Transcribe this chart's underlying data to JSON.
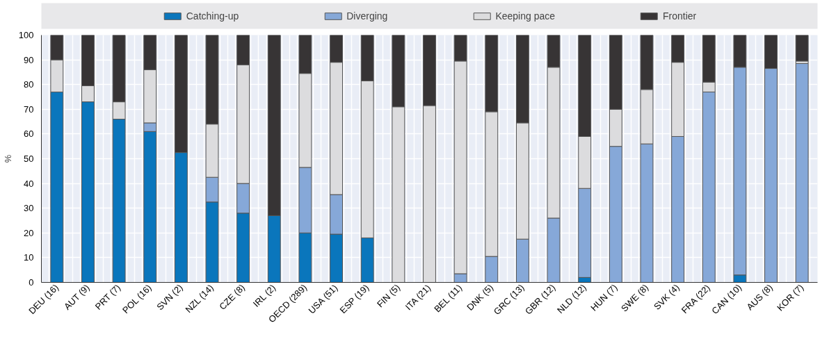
{
  "chart_data": {
    "type": "bar",
    "stacked": true,
    "ylabel": "%",
    "categories": [
      "DEU (16)",
      "AUT (9)",
      "PRT (7)",
      "POL (16)",
      "SVN (2)",
      "NZL (14)",
      "CZE (8)",
      "IRL (2)",
      "OECD (289)",
      "USA (51)",
      "ESP (19)",
      "FIN (5)",
      "ITA (21)",
      "BEL (11)",
      "DNK (5)",
      "GRC (13)",
      "GBR (12)",
      "NLD (12)",
      "HUN (7)",
      "SWE (8)",
      "SVK (4)",
      "FRA (22)",
      "CAN (10)",
      "AUS (8)",
      "KOR (7)"
    ],
    "series": [
      {
        "name": "Catching-up",
        "color": "#0a76bc",
        "colors": [
          "#0a76bc",
          "#0a76bc",
          "#0a76bc",
          "#0a76bc",
          "#0a76bc",
          "#0a76bc",
          "#0a76bc",
          "#0a76bc",
          "#0a76bc",
          "#0a76bc",
          "#0a76bc",
          "#0a76bc",
          "#0a76bc",
          "#0a76bc",
          "#0a76bc",
          "#0a76bc",
          "#0a76bc",
          "#0a76bc",
          "#0a76bc",
          "#0a76bc",
          "#0a76bc",
          "#0a76bc",
          "#0a76bc",
          "#0a76bc",
          "#0a76bc"
        ],
        "values": [
          77,
          73,
          66,
          61,
          52.5,
          32.5,
          28,
          27,
          20,
          19.5,
          18,
          0,
          0,
          0,
          0,
          0,
          0,
          2,
          0,
          0,
          0,
          0,
          3,
          0,
          0
        ]
      },
      {
        "name": "Diverging",
        "color": "#86a8d8",
        "colors": [
          "#86a8d8",
          "#86a8d8",
          "#86a8d8",
          "#86a8d8",
          "#86a8d8",
          "#86a8d8",
          "#86a8d8",
          "#86a8d8",
          "#86a8d8",
          "#86a8d8",
          "#86a8d8",
          "#86a8d8",
          "#86a8d8",
          "#86a8d8",
          "#86a8d8",
          "#86a8d8",
          "#86a8d8",
          "#86a8d8",
          "#86a8d8",
          "#86a8d8",
          "#86a8d8",
          "#86a8d8",
          "#86a8d8",
          "#86a8d8",
          "#86a8d8"
        ],
        "values": [
          0,
          0,
          0,
          3.5,
          0,
          10,
          12,
          0,
          26.5,
          16,
          0,
          0,
          0,
          3.5,
          10.5,
          17.5,
          26,
          36,
          55,
          56,
          59,
          77,
          84,
          86.5,
          88.5
        ]
      },
      {
        "name": "Keeping pace",
        "color": "#dcdcde",
        "colors": [
          "#dcdcde",
          "#dcdcde",
          "#dcdcde",
          "#dcdcde",
          "#dcdcde",
          "#dcdcde",
          "#dcdcde",
          "#dcdcde",
          "#dcdcde",
          "#dcdcde",
          "#dcdcde",
          "#dcdcde",
          "#dcdcde",
          "#dcdcde",
          "#dcdcde",
          "#dcdcde",
          "#dcdcde",
          "#dcdcde",
          "#dcdcde",
          "#dcdcde",
          "#dcdcde",
          "#dcdcde",
          "#dcdcde",
          "#dcdcde",
          "#dcdcde"
        ],
        "values": [
          13,
          6.5,
          7,
          21.5,
          0,
          21.5,
          48,
          0,
          38,
          53.5,
          63.5,
          71,
          71.5,
          86,
          58.5,
          47,
          61,
          21,
          15,
          22,
          30,
          4,
          0,
          0,
          1
        ]
      },
      {
        "name": "Frontier",
        "color": "#373435",
        "colors": [
          "#373435",
          "#373435",
          "#373435",
          "#373435",
          "#373435",
          "#373435",
          "#373435",
          "#373435",
          "#373435",
          "#373435",
          "#373435",
          "#373435",
          "#373435",
          "#373435",
          "#373435",
          "#373435",
          "#373435",
          "#373435",
          "#373435",
          "#373435",
          "#373435",
          "#373435",
          "#373435",
          "#373435",
          "#373435"
        ],
        "values": [
          10,
          20.5,
          27,
          14,
          47.5,
          36,
          12,
          73,
          15.5,
          11,
          18.5,
          29,
          28.5,
          10.5,
          31,
          35.5,
          13,
          41,
          30,
          22,
          11,
          19,
          13,
          13.5,
          10.5
        ]
      }
    ],
    "ylim": [
      0,
      100
    ],
    "yticks": [
      0,
      10,
      20,
      30,
      40,
      50,
      60,
      70,
      80,
      90,
      100
    ],
    "grid": true,
    "legend": "top"
  }
}
